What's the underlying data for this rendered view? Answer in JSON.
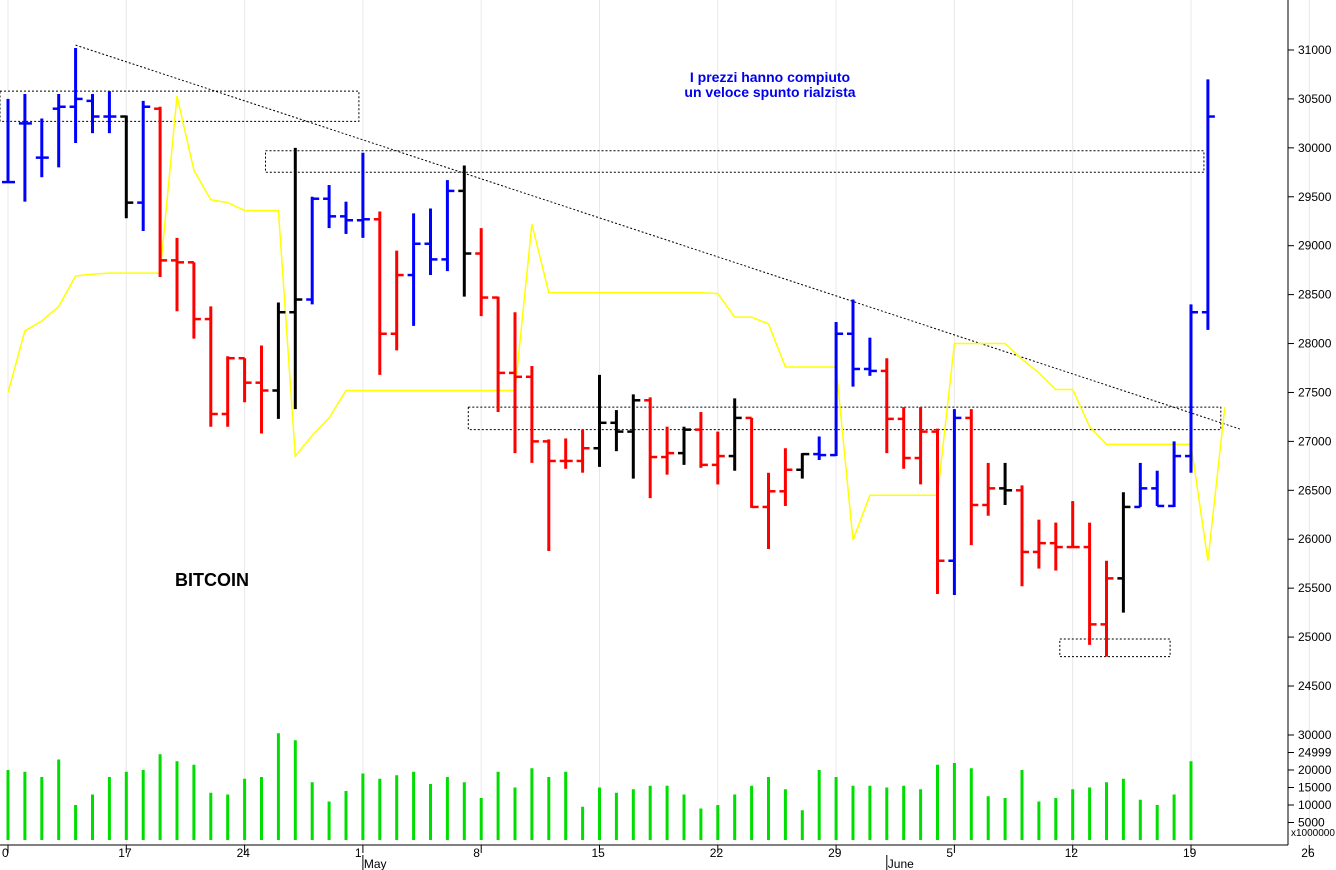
{
  "chart_data": {
    "type": "ohlc",
    "title": "BITCOIN",
    "annotation": [
      "I prezzi hanno compiuto",
      "un veloce spunto rialzista"
    ],
    "price_axis": {
      "range": [
        24000,
        31500
      ],
      "ticks": [
        24500,
        25000,
        25500,
        26000,
        26500,
        27000,
        27500,
        28000,
        28500,
        29000,
        29500,
        30000,
        30500,
        31000
      ]
    },
    "volume_axis": {
      "range": [
        0,
        33000
      ],
      "ticks": [
        5000,
        10000,
        15000,
        20000,
        24999,
        30000
      ],
      "unit_label": "x1000000"
    },
    "x_ticks": [
      {
        "label": "0",
        "i": 0
      },
      {
        "label": "17",
        "i": 7
      },
      {
        "label": "24",
        "i": 14
      },
      {
        "label": "1",
        "i": 21
      },
      {
        "label": "8",
        "i": 28
      },
      {
        "label": "15",
        "i": 35
      },
      {
        "label": "22",
        "i": 42
      },
      {
        "label": "29",
        "i": 49
      },
      {
        "label": "5",
        "i": 56
      },
      {
        "label": "12",
        "i": 63
      },
      {
        "label": "19",
        "i": 70
      },
      {
        "label": "26",
        "i": 77
      }
    ],
    "month_labels": [
      {
        "label": "May",
        "i": 21
      },
      {
        "label": "June",
        "i": 52
      }
    ],
    "colors": {
      "up": "#0000ff",
      "down": "#ff0000",
      "neutral": "#000000",
      "volume": "#00dd00",
      "ma": "#ffff00"
    },
    "bars": [
      {
        "o": 29650,
        "h": 30500,
        "l": 29650,
        "c": 29650,
        "v": 20000,
        "t": "up"
      },
      {
        "o": 30250,
        "h": 30550,
        "l": 29450,
        "c": 30250,
        "v": 19500,
        "t": "up"
      },
      {
        "o": 29900,
        "h": 30300,
        "l": 29700,
        "c": 29900,
        "v": 18000,
        "t": "up"
      },
      {
        "o": 30400,
        "h": 30550,
        "l": 29800,
        "c": 30420,
        "v": 23000,
        "t": "up"
      },
      {
        "o": 30420,
        "h": 31020,
        "l": 30050,
        "c": 30500,
        "v": 10000,
        "t": "up"
      },
      {
        "o": 30480,
        "h": 30550,
        "l": 30150,
        "c": 30320,
        "v": 13000,
        "t": "up"
      },
      {
        "o": 30320,
        "h": 30580,
        "l": 30150,
        "c": 30320,
        "v": 18000,
        "t": "up"
      },
      {
        "o": 30320,
        "h": 30330,
        "l": 29280,
        "c": 29440,
        "v": 19500,
        "t": "neutral"
      },
      {
        "o": 29440,
        "h": 30480,
        "l": 29150,
        "c": 30420,
        "v": 20000,
        "t": "up"
      },
      {
        "o": 30400,
        "h": 30420,
        "l": 28680,
        "c": 28850,
        "v": 24500,
        "t": "down"
      },
      {
        "o": 28850,
        "h": 29080,
        "l": 28330,
        "c": 28830,
        "v": 22500,
        "t": "down"
      },
      {
        "o": 28830,
        "h": 28330,
        "l": 28050,
        "c": 28250,
        "v": 21500,
        "t": "down"
      },
      {
        "o": 28250,
        "h": 28380,
        "l": 27150,
        "c": 27280,
        "v": 13500,
        "t": "down"
      },
      {
        "o": 27280,
        "h": 27870,
        "l": 27150,
        "c": 27850,
        "v": 13000,
        "t": "down"
      },
      {
        "o": 27850,
        "h": 27850,
        "l": 27400,
        "c": 27600,
        "v": 17500,
        "t": "down"
      },
      {
        "o": 27600,
        "h": 27980,
        "l": 27080,
        "c": 27520,
        "v": 18000,
        "t": "down"
      },
      {
        "o": 27520,
        "h": 28420,
        "l": 27230,
        "c": 28320,
        "v": 30500,
        "t": "neutral"
      },
      {
        "o": 28320,
        "h": 30000,
        "l": 27330,
        "c": 28450,
        "v": 28500,
        "t": "neutral"
      },
      {
        "o": 28450,
        "h": 29500,
        "l": 28400,
        "c": 29480,
        "v": 16500,
        "t": "up"
      },
      {
        "o": 29480,
        "h": 29620,
        "l": 29180,
        "c": 29300,
        "v": 11000,
        "t": "up"
      },
      {
        "o": 29300,
        "h": 29450,
        "l": 29120,
        "c": 29260,
        "v": 14000,
        "t": "up"
      },
      {
        "o": 29260,
        "h": 29950,
        "l": 29080,
        "c": 29270,
        "v": 19000,
        "t": "up"
      },
      {
        "o": 29270,
        "h": 29350,
        "l": 27680,
        "c": 28100,
        "v": 17500,
        "t": "down"
      },
      {
        "o": 28100,
        "h": 28950,
        "l": 27930,
        "c": 28700,
        "v": 18500,
        "t": "down"
      },
      {
        "o": 28700,
        "h": 29330,
        "l": 28180,
        "c": 29020,
        "v": 19500,
        "t": "up"
      },
      {
        "o": 29020,
        "h": 29380,
        "l": 28700,
        "c": 28860,
        "v": 16000,
        "t": "up"
      },
      {
        "o": 28860,
        "h": 29670,
        "l": 28740,
        "c": 29560,
        "v": 18000,
        "t": "up"
      },
      {
        "o": 29560,
        "h": 29820,
        "l": 28480,
        "c": 28920,
        "v": 16500,
        "t": "neutral"
      },
      {
        "o": 28920,
        "h": 29180,
        "l": 28280,
        "c": 28470,
        "v": 12000,
        "t": "down"
      },
      {
        "o": 28470,
        "h": 28480,
        "l": 27300,
        "c": 27700,
        "v": 19500,
        "t": "down"
      },
      {
        "o": 27700,
        "h": 28320,
        "l": 26880,
        "c": 27660,
        "v": 15000,
        "t": "down"
      },
      {
        "o": 27660,
        "h": 27770,
        "l": 26780,
        "c": 27000,
        "v": 20500,
        "t": "down"
      },
      {
        "o": 27000,
        "h": 27020,
        "l": 25880,
        "c": 26800,
        "v": 18000,
        "t": "down"
      },
      {
        "o": 26800,
        "h": 27030,
        "l": 26720,
        "c": 26800,
        "v": 19500,
        "t": "down"
      },
      {
        "o": 26800,
        "h": 27120,
        "l": 26680,
        "c": 26930,
        "v": 9500,
        "t": "down"
      },
      {
        "o": 26930,
        "h": 27680,
        "l": 26740,
        "c": 27190,
        "v": 15000,
        "t": "neutral"
      },
      {
        "o": 27190,
        "h": 27320,
        "l": 26900,
        "c": 27100,
        "v": 13500,
        "t": "neutral"
      },
      {
        "o": 27100,
        "h": 27480,
        "l": 26620,
        "c": 27420,
        "v": 14500,
        "t": "neutral"
      },
      {
        "o": 27420,
        "h": 27450,
        "l": 26420,
        "c": 26840,
        "v": 15500,
        "t": "down"
      },
      {
        "o": 26840,
        "h": 27150,
        "l": 26660,
        "c": 26880,
        "v": 15500,
        "t": "down"
      },
      {
        "o": 26880,
        "h": 27150,
        "l": 26760,
        "c": 27120,
        "v": 13000,
        "t": "neutral"
      },
      {
        "o": 27120,
        "h": 27300,
        "l": 26730,
        "c": 26760,
        "v": 9000,
        "t": "down"
      },
      {
        "o": 26760,
        "h": 27100,
        "l": 26560,
        "c": 26850,
        "v": 10000,
        "t": "down"
      },
      {
        "o": 26850,
        "h": 27440,
        "l": 26700,
        "c": 27240,
        "v": 13000,
        "t": "neutral"
      },
      {
        "o": 27240,
        "h": 27240,
        "l": 26320,
        "c": 26330,
        "v": 15500,
        "t": "down"
      },
      {
        "o": 26330,
        "h": 26680,
        "l": 25900,
        "c": 26490,
        "v": 18000,
        "t": "down"
      },
      {
        "o": 26490,
        "h": 26930,
        "l": 26340,
        "c": 26710,
        "v": 14500,
        "t": "down"
      },
      {
        "o": 26710,
        "h": 26880,
        "l": 26620,
        "c": 26870,
        "v": 8500,
        "t": "neutral"
      },
      {
        "o": 26870,
        "h": 27050,
        "l": 26810,
        "c": 26860,
        "v": 20000,
        "t": "up"
      },
      {
        "o": 26860,
        "h": 28220,
        "l": 26850,
        "c": 28100,
        "v": 18000,
        "t": "up"
      },
      {
        "o": 28100,
        "h": 28450,
        "l": 27560,
        "c": 27740,
        "v": 15500,
        "t": "up"
      },
      {
        "o": 27740,
        "h": 28060,
        "l": 27670,
        "c": 27720,
        "v": 15500,
        "t": "up"
      },
      {
        "o": 27720,
        "h": 27850,
        "l": 26880,
        "c": 27230,
        "v": 15000,
        "t": "down"
      },
      {
        "o": 27230,
        "h": 27350,
        "l": 26720,
        "c": 26830,
        "v": 15500,
        "t": "down"
      },
      {
        "o": 26830,
        "h": 27350,
        "l": 26560,
        "c": 27100,
        "v": 14500,
        "t": "down"
      },
      {
        "o": 27100,
        "h": 27130,
        "l": 25440,
        "c": 25780,
        "v": 21500,
        "t": "down"
      },
      {
        "o": 25780,
        "h": 27330,
        "l": 25430,
        "c": 27240,
        "v": 22000,
        "t": "up"
      },
      {
        "o": 27240,
        "h": 27330,
        "l": 25940,
        "c": 26350,
        "v": 20500,
        "t": "down"
      },
      {
        "o": 26350,
        "h": 26780,
        "l": 26240,
        "c": 26520,
        "v": 12500,
        "t": "down"
      },
      {
        "o": 26520,
        "h": 26780,
        "l": 26350,
        "c": 26500,
        "v": 12000,
        "t": "neutral"
      },
      {
        "o": 26500,
        "h": 26550,
        "l": 25520,
        "c": 25870,
        "v": 20000,
        "t": "down"
      },
      {
        "o": 25870,
        "h": 26200,
        "l": 25700,
        "c": 25960,
        "v": 11000,
        "t": "down"
      },
      {
        "o": 25960,
        "h": 26170,
        "l": 25680,
        "c": 25920,
        "v": 12000,
        "t": "down"
      },
      {
        "o": 25920,
        "h": 26390,
        "l": 25950,
        "c": 25920,
        "v": 14500,
        "t": "down"
      },
      {
        "o": 25920,
        "h": 26170,
        "l": 24920,
        "c": 25130,
        "v": 15000,
        "t": "down"
      },
      {
        "o": 25130,
        "h": 25780,
        "l": 24800,
        "c": 25600,
        "v": 16500,
        "t": "down"
      },
      {
        "o": 25600,
        "h": 26480,
        "l": 25250,
        "c": 26330,
        "v": 17500,
        "t": "neutral"
      },
      {
        "o": 26330,
        "h": 26780,
        "l": 26330,
        "c": 26520,
        "v": 11500,
        "t": "up"
      },
      {
        "o": 26520,
        "h": 26700,
        "l": 26350,
        "c": 26340,
        "v": 10000,
        "t": "up"
      },
      {
        "o": 26340,
        "h": 27000,
        "l": 26330,
        "c": 26850,
        "v": 13000,
        "t": "up"
      },
      {
        "o": 26850,
        "h": 28400,
        "l": 26680,
        "c": 28320,
        "v": 22500,
        "t": "up"
      },
      {
        "o": 28320,
        "h": 30700,
        "l": 28140,
        "c": 30320,
        "v": 0,
        "t": "up"
      }
    ],
    "moving_average": [
      27500,
      28130,
      28230,
      28380,
      28690,
      28710,
      28720,
      28720,
      28720,
      28720,
      30530,
      29770,
      29470,
      29440,
      29360,
      29360,
      29360,
      26850,
      27060,
      27240,
      27520,
      27520,
      27520,
      27520,
      27520,
      27520,
      27520,
      27520,
      27520,
      27520,
      27520,
      29220,
      28520,
      28520,
      28520,
      28520,
      28520,
      28520,
      28520,
      28520,
      28520,
      28520,
      28510,
      28270,
      28270,
      28200,
      27760,
      27760,
      27760,
      27760,
      25990,
      26450,
      26450,
      26450,
      26450,
      26450,
      28000,
      28000,
      28000,
      28000,
      27840,
      27700,
      27530,
      27530,
      27150,
      26970,
      26970,
      26970,
      26970,
      26970,
      26970,
      25780,
      27350
    ],
    "support_resistance_boxes": [
      {
        "from_i": -1,
        "to_i": 21,
        "low": 30270,
        "high": 30580
      },
      {
        "from_i": 15,
        "to_i": 71,
        "low": 29750,
        "high": 29970
      },
      {
        "from_i": 27,
        "to_i": 72,
        "low": 27120,
        "high": 27350
      },
      {
        "from_i": 62,
        "to_i": 69,
        "low": 24800,
        "high": 24980
      }
    ],
    "trendline": {
      "from": {
        "i": 4,
        "price": 31050
      },
      "to": {
        "i": 73,
        "price": 27120
      }
    }
  }
}
